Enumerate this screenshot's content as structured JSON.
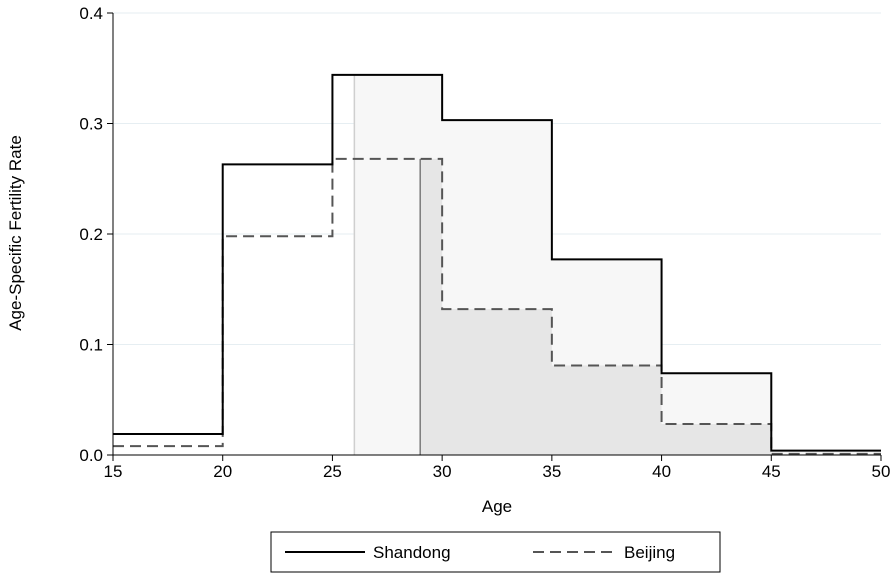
{
  "chart_data": {
    "type": "line",
    "subtype": "step",
    "title": "",
    "xlabel": "Age",
    "ylabel": "Age-Specific Fertility Rate",
    "xlim": [
      15,
      50
    ],
    "ylim": [
      0,
      0.4
    ],
    "x_ticks": [
      "15",
      "20",
      "25",
      "30",
      "35",
      "40",
      "45",
      "50"
    ],
    "y_ticks": [
      "0.0",
      "0.1",
      "0.2",
      "0.3",
      "0.4"
    ],
    "grid": "horizontal",
    "legend_position": "bottom",
    "age_group_starts": [
      15,
      20,
      25,
      30,
      35,
      40,
      45,
      50
    ],
    "series": [
      {
        "name": "Shandong",
        "style": "solid",
        "color": "#000000",
        "fill": "#f7f7f7",
        "shaded_from": 26,
        "marker_line_at": 26,
        "values": [
          0.019,
          0.263,
          0.344,
          0.303,
          0.177,
          0.074,
          0.004
        ]
      },
      {
        "name": "Beijing",
        "style": "dashed",
        "color": "#555555",
        "fill": "#e6e6e6",
        "shaded_from": 29,
        "marker_line_at": 29,
        "values": [
          0.008,
          0.198,
          0.268,
          0.132,
          0.081,
          0.028,
          0.001
        ]
      }
    ],
    "colors": {
      "grid": "#e6eef2",
      "marker_line_light": "#cfcfcf",
      "marker_line_dark": "#7a7a7a"
    }
  }
}
